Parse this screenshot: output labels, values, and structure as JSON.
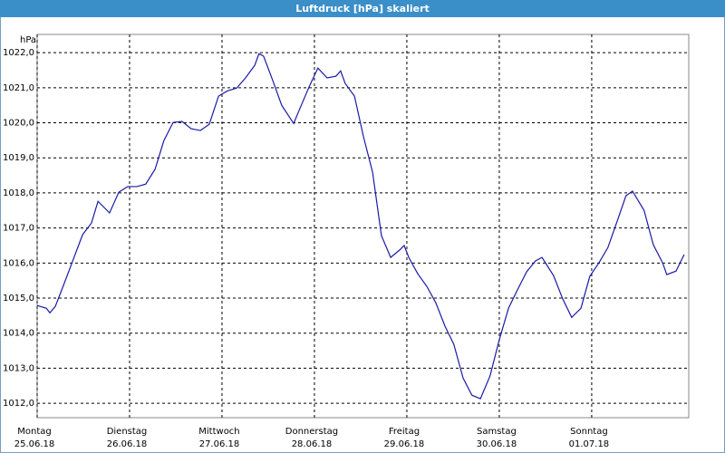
{
  "chart_data": {
    "type": "line",
    "title": "Luftdruck [hPa] skaliert",
    "ylabel": "hPa",
    "x": [
      0,
      2.4,
      3.3,
      4.7,
      7.1,
      9.4,
      11.8,
      14.1,
      15.8,
      18.8,
      21.2,
      23.5,
      25.9,
      28.2,
      30.6,
      32.9,
      35.3,
      37.6,
      40.0,
      42.4,
      44.7,
      47.1,
      49.4,
      51.8,
      54.1,
      56.5,
      57.6,
      58.8,
      61.2,
      63.5,
      66.6,
      68.2,
      70.6,
      72.9,
      75.3,
      77.6,
      78.8,
      80.0,
      82.4,
      84.7,
      87.1,
      89.4,
      91.8,
      94.1,
      95.3,
      96.5,
      98.8,
      101.2,
      103.5,
      105.9,
      108.2,
      110.6,
      112.9,
      115.1,
      117.6,
      120.0,
      122.4,
      124.7,
      127.1,
      129.4,
      131.1,
      134.1,
      136.5,
      138.8,
      141.2,
      143.5,
      145.9,
      148.2,
      150.6,
      152.9,
      154.6,
      157.6,
      160.0,
      162.4,
      163.5,
      165.9,
      168.0
    ],
    "series": [
      {
        "name": "Luftdruck",
        "color": "#1a1aa6",
        "values": [
          1014.79,
          1014.71,
          1014.58,
          1014.76,
          1015.44,
          1016.11,
          1016.81,
          1017.14,
          1017.76,
          1017.43,
          1018.02,
          1018.18,
          1018.18,
          1018.25,
          1018.67,
          1019.49,
          1020.01,
          1020.04,
          1019.83,
          1019.78,
          1019.96,
          1020.76,
          1020.91,
          1020.99,
          1021.28,
          1021.64,
          1021.97,
          1021.9,
          1021.2,
          1020.5,
          1019.98,
          1020.4,
          1021.02,
          1021.56,
          1021.28,
          1021.33,
          1021.48,
          1021.12,
          1020.76,
          1019.62,
          1018.59,
          1016.78,
          1016.16,
          1016.37,
          1016.5,
          1016.16,
          1015.7,
          1015.33,
          1014.87,
          1014.2,
          1013.68,
          1012.72,
          1012.23,
          1012.13,
          1012.78,
          1013.81,
          1014.71,
          1015.23,
          1015.75,
          1016.06,
          1016.16,
          1015.64,
          1014.97,
          1014.45,
          1014.71,
          1015.62,
          1016.01,
          1016.44,
          1017.19,
          1017.92,
          1018.05,
          1017.5,
          1016.52,
          1016.01,
          1015.67,
          1015.77,
          1016.24
        ]
      }
    ],
    "xlim": [
      0,
      169.2
    ],
    "xticks": [
      {
        "value": 0,
        "label": "Montag"
      },
      {
        "value": 24,
        "label": "Dienstag"
      },
      {
        "value": 48,
        "label": "Mittwoch"
      },
      {
        "value": 72,
        "label": "Donnerstag"
      },
      {
        "value": 96,
        "label": "Freitag"
      },
      {
        "value": 120,
        "label": "Samstag"
      },
      {
        "value": 144,
        "label": "Sonntag"
      }
    ],
    "xtick_dates": [
      "25.06.18",
      "26.06.18",
      "27.06.18",
      "28.06.18",
      "29.06.18",
      "30.06.18",
      "01.07.18"
    ],
    "ylim": [
      1011.59,
      1022.52
    ],
    "yticks": [
      {
        "value": 1012,
        "label": "1012,0"
      },
      {
        "value": 1013,
        "label": "1013,0"
      },
      {
        "value": 1014,
        "label": "1014,0"
      },
      {
        "value": 1015,
        "label": "1015,0"
      },
      {
        "value": 1016,
        "label": "1016,0"
      },
      {
        "value": 1017,
        "label": "1017,0"
      },
      {
        "value": 1018,
        "label": "1018,0"
      },
      {
        "value": 1019,
        "label": "1019,0"
      },
      {
        "value": 1020,
        "label": "1020,0"
      },
      {
        "value": 1021,
        "label": "1021,0"
      },
      {
        "value": 1022,
        "label": "1022,0"
      }
    ],
    "grid": true
  }
}
